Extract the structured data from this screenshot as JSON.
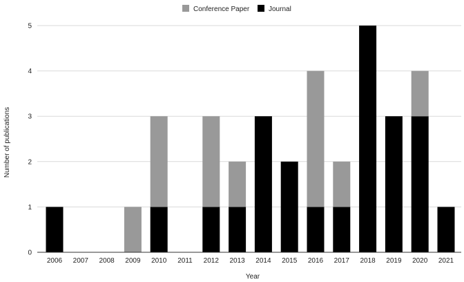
{
  "chart_data": {
    "type": "bar",
    "stacked": true,
    "title": "",
    "xlabel": "Year",
    "ylabel": "Number of publications",
    "categories": [
      "2006",
      "2007",
      "2008",
      "2009",
      "2010",
      "2011",
      "2012",
      "2013",
      "2014",
      "2015",
      "2016",
      "2017",
      "2018",
      "2019",
      "2020",
      "2021"
    ],
    "series": [
      {
        "name": "Journal",
        "color": "#000000",
        "values": [
          1,
          0,
          0,
          0,
          1,
          0,
          1,
          1,
          3,
          2,
          1,
          1,
          5,
          3,
          3,
          1
        ]
      },
      {
        "name": "Conference Paper",
        "color": "#999999",
        "values": [
          0,
          0,
          0,
          1,
          2,
          0,
          2,
          1,
          0,
          0,
          3,
          1,
          0,
          0,
          1,
          0
        ]
      }
    ],
    "legend_order": [
      "Conference Paper",
      "Journal"
    ],
    "legend_position": "top",
    "ylim": [
      0,
      5
    ],
    "yticks": [
      0,
      1,
      2,
      3,
      4,
      5
    ],
    "grid": true
  }
}
